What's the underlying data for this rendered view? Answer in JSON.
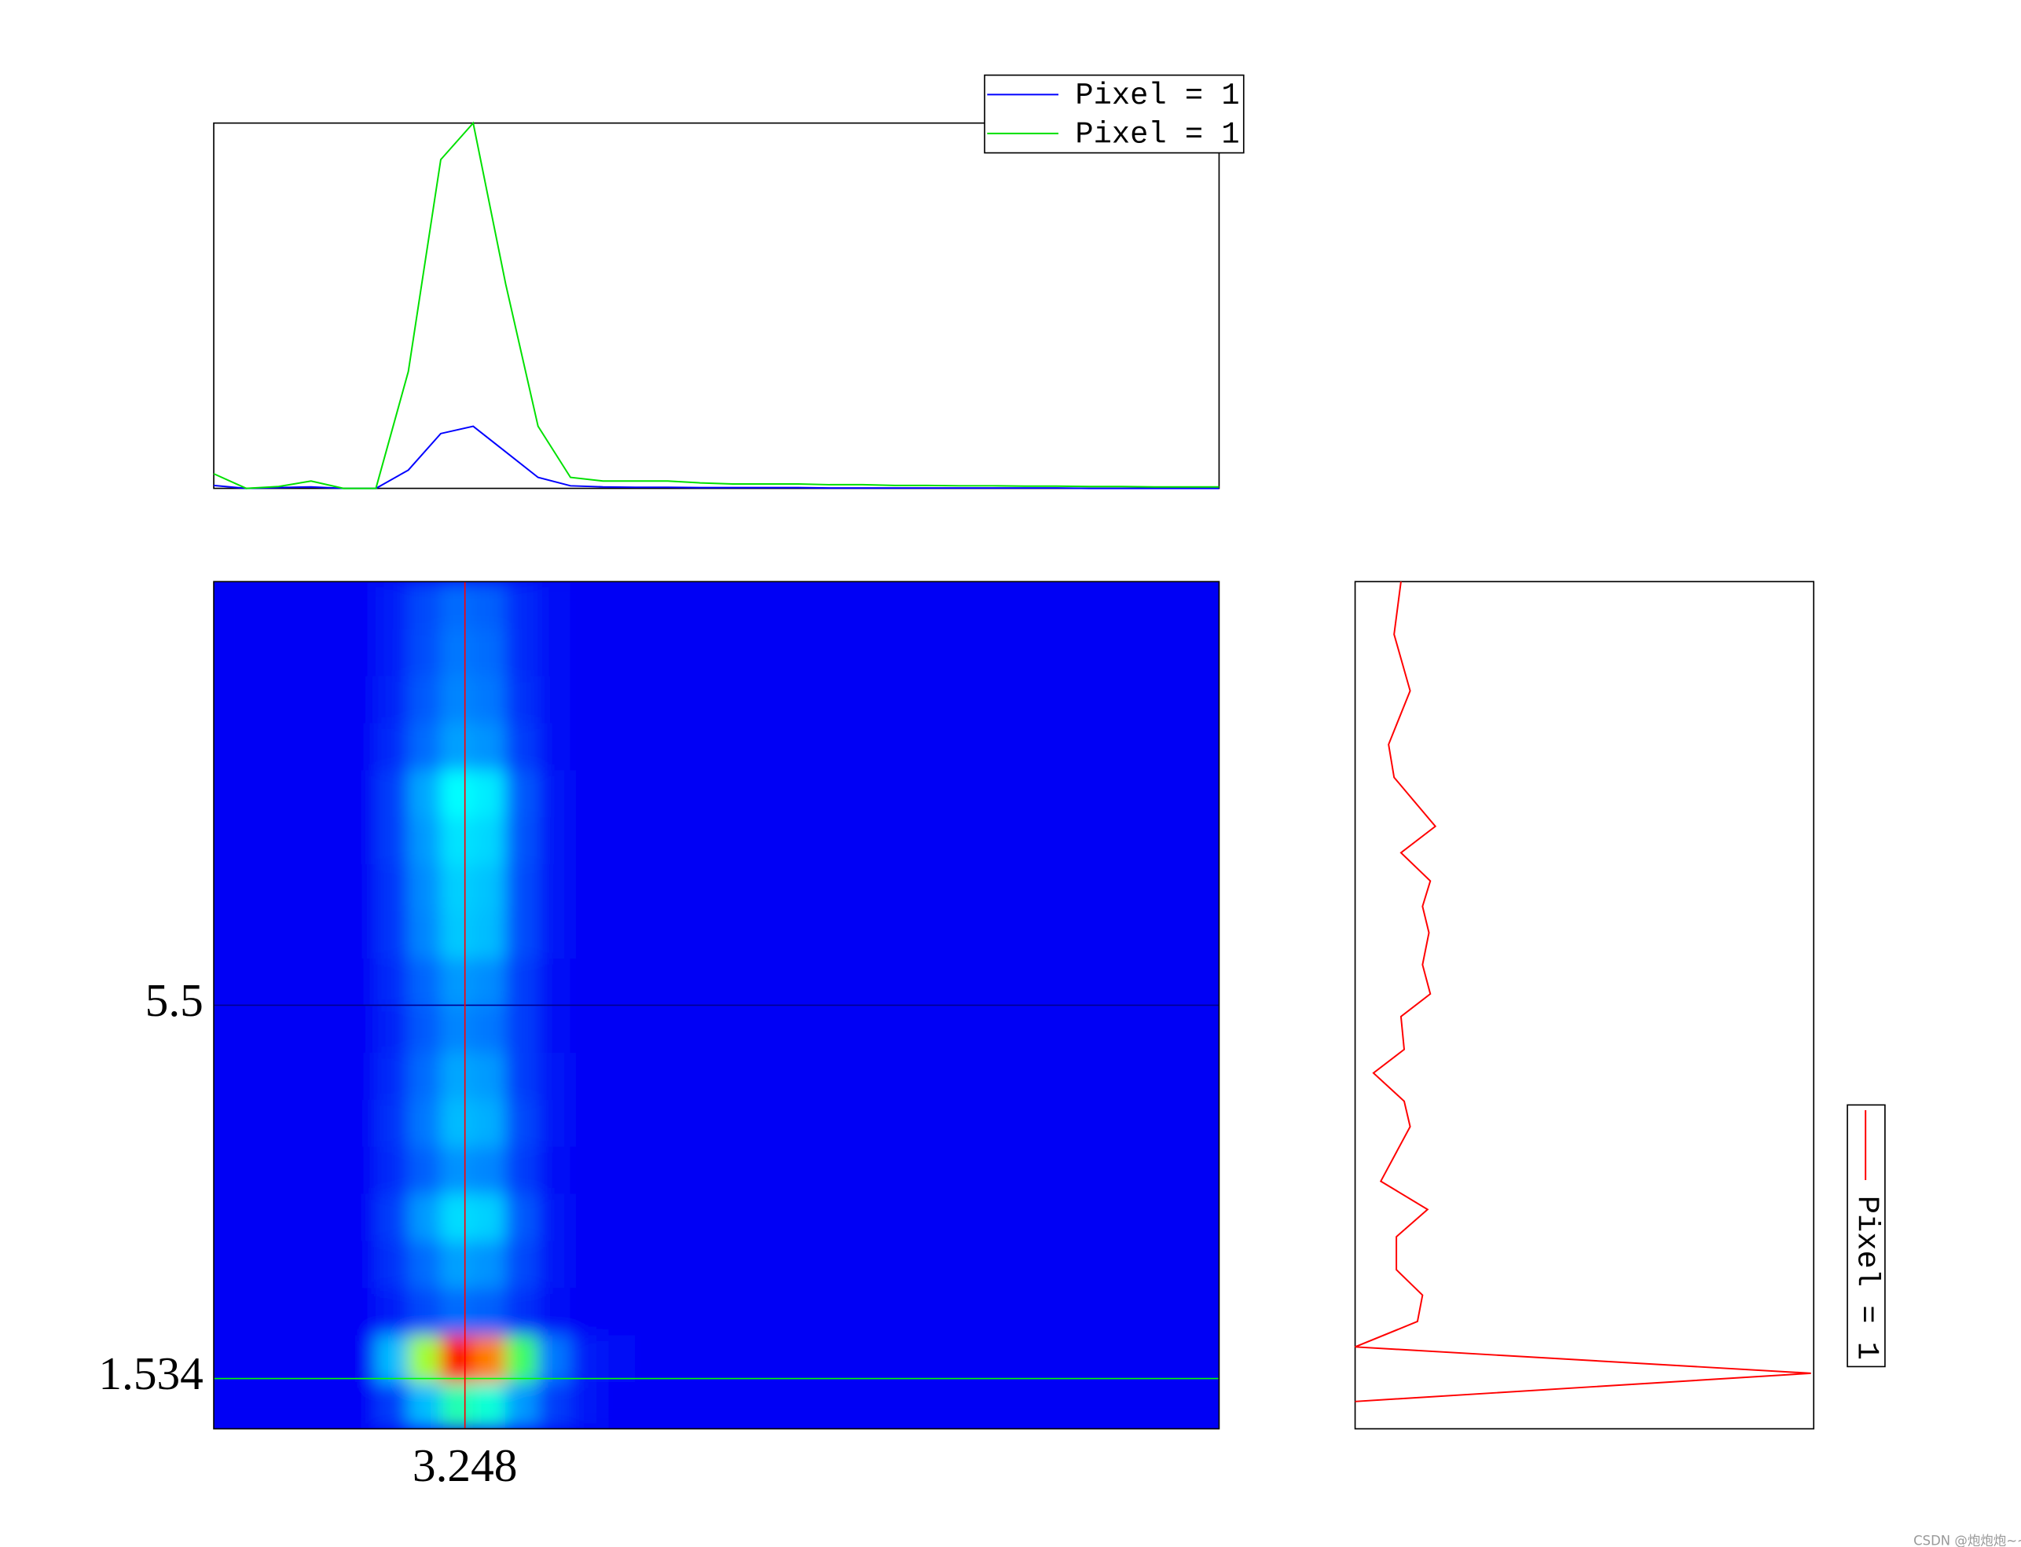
{
  "chart_data": [
    {
      "type": "line",
      "x": [
        0,
        1,
        2,
        3,
        4,
        5,
        6,
        7,
        8,
        9,
        10,
        11,
        12,
        13,
        14,
        15,
        16,
        17,
        18,
        19,
        20,
        21,
        22,
        23,
        24,
        25,
        26,
        27,
        28,
        29,
        30,
        31
      ],
      "xlim": [
        0,
        31
      ],
      "ylim": [
        0,
        1
      ],
      "legend": "top-right",
      "series": [
        {
          "name": "Pixel = 1",
          "color": "#0000ff",
          "values": [
            0.008,
            0,
            0.002,
            0.004,
            0,
            0,
            0.05,
            0.15,
            0.17,
            0.1,
            0.03,
            0.007,
            0.004,
            0.003,
            0.003,
            0.002,
            0.002,
            0.002,
            0.002,
            0.001,
            0.001,
            0.001,
            0.001,
            0.001,
            0.001,
            0.001,
            0.001,
            0,
            0,
            0,
            0,
            0
          ]
        },
        {
          "name": "Pixel = 1",
          "color": "#00e000",
          "values": [
            0.04,
            0,
            0.005,
            0.02,
            0,
            0,
            0.32,
            0.9,
            1,
            0.56,
            0.17,
            0.03,
            0.02,
            0.02,
            0.02,
            0.015,
            0.012,
            0.012,
            0.012,
            0.01,
            0.01,
            0.008,
            0.008,
            0.007,
            0.007,
            0.006,
            0.006,
            0.005,
            0.005,
            0.004,
            0.004,
            0.004
          ]
        }
      ]
    },
    {
      "type": "heatmap",
      "xlim": [
        0,
        13
      ],
      "ylim": [
        1,
        10
      ],
      "xticks": [
        3.248
      ],
      "yticks": [
        1.534,
        5.5
      ],
      "xtick_colors": [
        "#ff0000"
      ],
      "ytick_colors": [
        "#00ff00",
        "#000090"
      ],
      "colormap": [
        "#0000f5",
        "#0078ff",
        "#00ffff",
        "#40ff60",
        "#ffff00",
        "#ff0000"
      ],
      "z": [
        [
          0,
          0,
          0,
          0,
          0,
          0.1,
          0.3,
          0.5,
          0.45,
          0.25,
          0.1,
          0.03,
          0,
          0,
          0,
          0,
          0,
          0,
          0,
          0,
          0,
          0,
          0,
          0,
          0,
          0,
          0,
          0,
          0,
          0,
          0
        ],
        [
          0,
          0,
          0,
          0,
          0,
          0.3,
          0.7,
          1,
          0.9,
          0.6,
          0.2,
          0.05,
          0.02,
          0,
          0,
          0,
          0,
          0,
          0,
          0,
          0,
          0,
          0,
          0,
          0,
          0,
          0,
          0,
          0,
          0,
          0
        ],
        [
          0,
          0,
          0,
          0,
          0,
          0.05,
          0.12,
          0.18,
          0.16,
          0.08,
          0.02,
          0,
          0,
          0,
          0,
          0,
          0,
          0,
          0,
          0,
          0,
          0,
          0,
          0,
          0,
          0,
          0,
          0,
          0,
          0,
          0
        ],
        [
          0,
          0,
          0,
          0,
          0,
          0.08,
          0.18,
          0.26,
          0.24,
          0.12,
          0.03,
          0,
          0,
          0,
          0,
          0,
          0,
          0,
          0,
          0,
          0,
          0,
          0,
          0,
          0,
          0,
          0,
          0,
          0,
          0,
          0
        ],
        [
          0,
          0,
          0,
          0,
          0,
          0.1,
          0.25,
          0.35,
          0.33,
          0.15,
          0.04,
          0,
          0,
          0,
          0,
          0,
          0,
          0,
          0,
          0,
          0,
          0,
          0,
          0,
          0,
          0,
          0,
          0,
          0,
          0,
          0
        ],
        [
          0,
          0,
          0,
          0,
          0,
          0.07,
          0.16,
          0.24,
          0.22,
          0.1,
          0.02,
          0,
          0,
          0,
          0,
          0,
          0,
          0,
          0,
          0,
          0,
          0,
          0,
          0,
          0,
          0,
          0,
          0,
          0,
          0,
          0
        ],
        [
          0,
          0,
          0,
          0,
          0,
          0.08,
          0.2,
          0.3,
          0.28,
          0.12,
          0.03,
          0,
          0,
          0,
          0,
          0,
          0,
          0,
          0,
          0,
          0,
          0,
          0,
          0,
          0,
          0,
          0,
          0,
          0,
          0,
          0
        ],
        [
          0,
          0,
          0,
          0,
          0,
          0.07,
          0.18,
          0.27,
          0.25,
          0.1,
          0.03,
          0,
          0,
          0,
          0,
          0,
          0,
          0,
          0,
          0,
          0,
          0,
          0,
          0,
          0,
          0,
          0,
          0,
          0,
          0,
          0
        ],
        [
          0,
          0,
          0,
          0,
          0,
          0.06,
          0.15,
          0.22,
          0.2,
          0.1,
          0.02,
          0,
          0,
          0,
          0,
          0,
          0,
          0,
          0,
          0,
          0,
          0,
          0,
          0,
          0,
          0,
          0,
          0,
          0,
          0,
          0
        ],
        [
          0,
          0,
          0,
          0,
          0,
          0.07,
          0.17,
          0.25,
          0.23,
          0.1,
          0.02,
          0,
          0,
          0,
          0,
          0,
          0,
          0,
          0,
          0,
          0,
          0,
          0,
          0,
          0,
          0,
          0,
          0,
          0,
          0,
          0
        ],
        [
          0,
          0,
          0,
          0,
          0,
          0.09,
          0.22,
          0.32,
          0.3,
          0.13,
          0.03,
          0,
          0,
          0,
          0,
          0,
          0,
          0,
          0,
          0,
          0,
          0,
          0,
          0,
          0,
          0,
          0,
          0,
          0,
          0,
          0
        ],
        [
          0,
          0,
          0,
          0,
          0,
          0.09,
          0.23,
          0.33,
          0.31,
          0.13,
          0.03,
          0,
          0,
          0,
          0,
          0,
          0,
          0,
          0,
          0,
          0,
          0,
          0,
          0,
          0,
          0,
          0,
          0,
          0,
          0,
          0
        ],
        [
          0,
          0,
          0,
          0,
          0,
          0.1,
          0.25,
          0.36,
          0.34,
          0.14,
          0.03,
          0,
          0,
          0,
          0,
          0,
          0,
          0,
          0,
          0,
          0,
          0,
          0,
          0,
          0,
          0,
          0,
          0,
          0,
          0,
          0
        ],
        [
          0,
          0,
          0,
          0,
          0,
          0.1,
          0.27,
          0.4,
          0.37,
          0.15,
          0.04,
          0,
          0,
          0,
          0,
          0,
          0,
          0,
          0,
          0,
          0,
          0,
          0,
          0,
          0,
          0,
          0,
          0,
          0,
          0,
          0
        ],
        [
          0,
          0,
          0,
          0,
          0,
          0.07,
          0.18,
          0.26,
          0.24,
          0.1,
          0.02,
          0,
          0,
          0,
          0,
          0,
          0,
          0,
          0,
          0,
          0,
          0,
          0,
          0,
          0,
          0,
          0,
          0,
          0,
          0,
          0
        ],
        [
          0,
          0,
          0,
          0,
          0,
          0.06,
          0.15,
          0.22,
          0.2,
          0.08,
          0.02,
          0,
          0,
          0,
          0,
          0,
          0,
          0,
          0,
          0,
          0,
          0,
          0,
          0,
          0,
          0,
          0,
          0,
          0,
          0,
          0
        ],
        [
          0,
          0,
          0,
          0,
          0,
          0.05,
          0.13,
          0.2,
          0.18,
          0.07,
          0.02,
          0,
          0,
          0,
          0,
          0,
          0,
          0,
          0,
          0,
          0,
          0,
          0,
          0,
          0,
          0,
          0,
          0,
          0,
          0,
          0
        ],
        [
          0,
          0,
          0,
          0,
          0,
          0.05,
          0.12,
          0.18,
          0.16,
          0.07,
          0.02,
          0,
          0,
          0,
          0,
          0,
          0,
          0,
          0,
          0,
          0,
          0,
          0,
          0,
          0,
          0,
          0,
          0,
          0,
          0,
          0
        ]
      ]
    },
    {
      "type": "profile",
      "xlim": [
        0,
        1
      ],
      "ylim": [
        1,
        10
      ],
      "y": [
        10.0,
        9.44,
        8.84,
        8.27,
        7.92,
        7.4,
        7.12,
        6.82,
        6.55,
        6.27,
        5.93,
        5.62,
        5.38,
        5.03,
        4.78,
        4.48,
        4.21,
        3.63,
        3.33,
        3.04,
        2.69,
        2.42,
        2.14,
        1.87,
        1.59,
        1.29
      ],
      "series": [
        {
          "name": "Pixel = 1",
          "color": "#ff0000",
          "values": [
            0.1,
            0.085,
            0.12,
            0.073,
            0.085,
            0.175,
            0.1,
            0.164,
            0.147,
            0.161,
            0.147,
            0.164,
            0.1,
            0.107,
            0.04,
            0.107,
            0.12,
            0.056,
            0.158,
            0.09,
            0.09,
            0.147,
            0.136,
            0,
            0.994,
            0
          ]
        }
      ]
    }
  ],
  "watermark": "CSDN @炮炮炮~~"
}
